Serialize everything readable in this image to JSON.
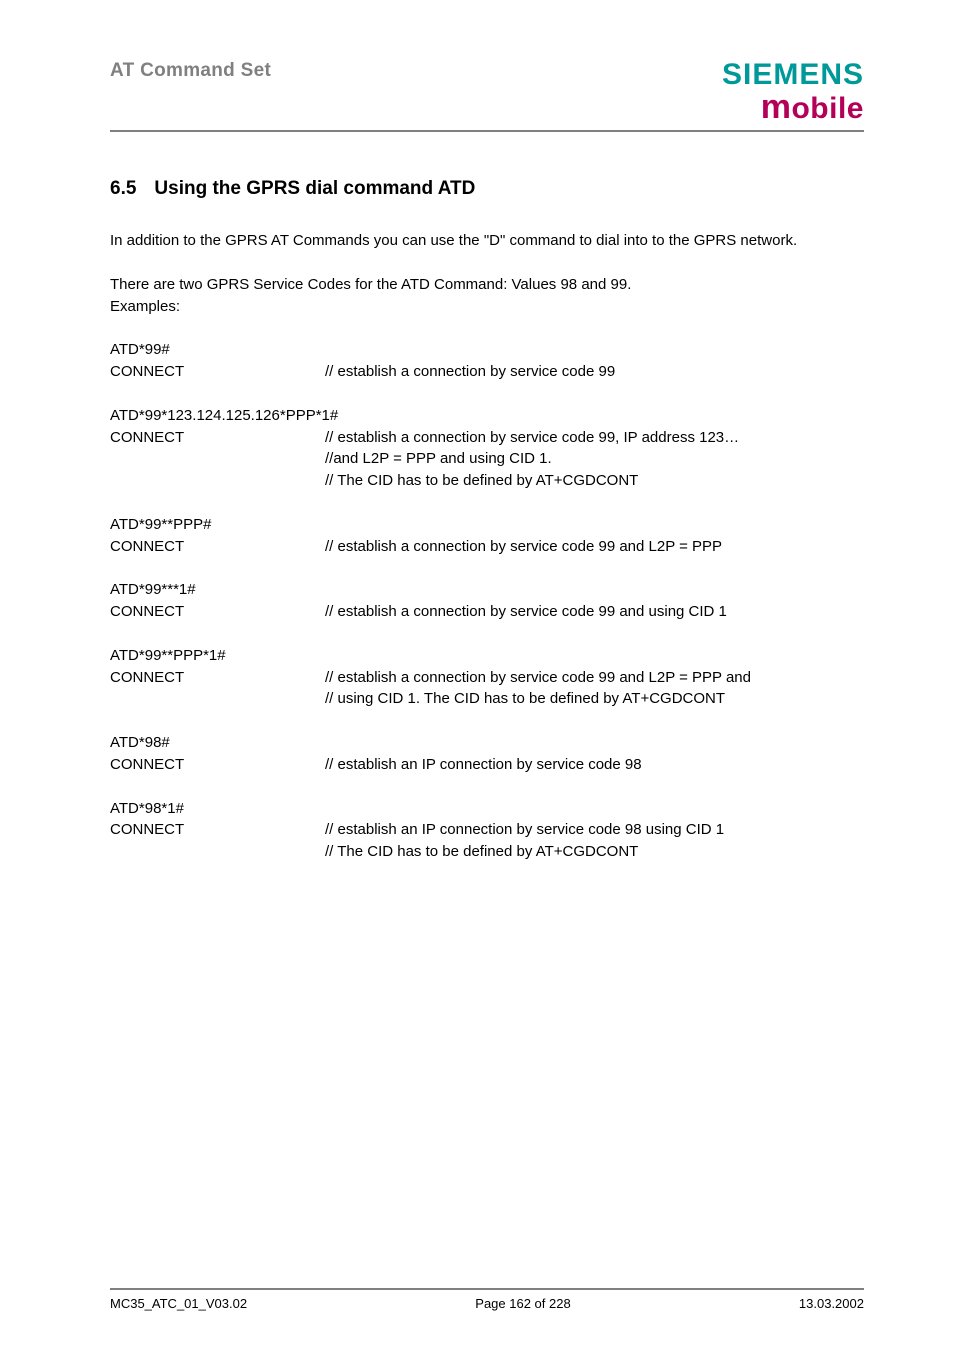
{
  "header": {
    "left": "AT Command Set",
    "logo_top": "SIEMENS",
    "logo_bottom_m": "m",
    "logo_bottom_rest": "obile",
    "logo_colors": {
      "siemens": "#009999",
      "mobile": "#b30059"
    }
  },
  "section": {
    "number": "6.5",
    "title": "Using the GPRS dial command ATD"
  },
  "para1": "In addition to the GPRS AT Commands you can use the \"D\" command to dial into to the GPRS network.",
  "para2a": "There are two GPRS Service Codes for the ATD Command: Values 98 and 99.",
  "para2b": "Examples:",
  "examples": [
    {
      "cmd": "ATD*99#",
      "resp": "CONNECT",
      "comment": [
        "// establish a connection by service code 99"
      ]
    },
    {
      "cmd": "ATD*99*123.124.125.126*PPP*1#",
      "resp": "CONNECT",
      "comment": [
        "// establish a connection by service code 99, IP address 123…",
        "//and L2P = PPP and using CID 1.",
        "// The CID has to be defined by AT+CGDCONT"
      ]
    },
    {
      "cmd": "ATD*99**PPP#",
      "resp": "CONNECT",
      "comment": [
        "// establish a connection by service code 99 and L2P = PPP"
      ]
    },
    {
      "cmd": "ATD*99***1#",
      "resp": "CONNECT",
      "comment": [
        "// establish a connection by service code 99 and using CID 1"
      ]
    },
    {
      "cmd": "ATD*99**PPP*1#",
      "resp": "CONNECT",
      "comment": [
        "// establish a connection by service code 99 and L2P = PPP and",
        "// using CID 1. The CID has to be defined by AT+CGDCONT"
      ]
    },
    {
      "cmd": "ATD*98#",
      "resp": "CONNECT",
      "comment": [
        "// establish an IP connection by service code 98"
      ]
    },
    {
      "cmd": "ATD*98*1#",
      "resp": "CONNECT",
      "comment": [
        "// establish an IP connection by service code 98 using CID 1",
        "// The CID has to be defined by AT+CGDCONT"
      ]
    }
  ],
  "footer": {
    "left": "MC35_ATC_01_V03.02",
    "center": "Page 162 of 228",
    "right": "13.03.2002"
  }
}
